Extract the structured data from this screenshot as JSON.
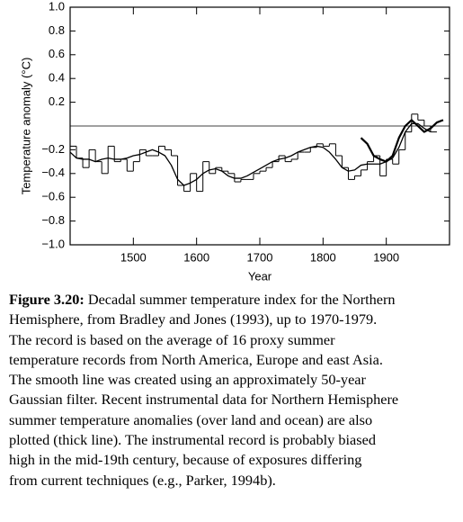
{
  "chart_data": {
    "type": "line",
    "ylabel": "Temperature anomaly (°C)",
    "xlabel": "Year",
    "xlim": [
      1400,
      2000
    ],
    "xticks": [
      1500,
      1600,
      1700,
      1800,
      1900
    ],
    "ylim": [
      -1,
      1
    ],
    "yticks": [
      {
        "value": -1,
        "label": "−1.0"
      },
      {
        "value": -0.8,
        "label": "−0.8"
      },
      {
        "value": -0.6,
        "label": "−0.6"
      },
      {
        "value": -0.4,
        "label": "−0.4"
      },
      {
        "value": -0.2,
        "label": "−0.2"
      },
      0.2,
      0.4,
      0.6,
      0.8,
      {
        "value": 1,
        "label": "1.0"
      }
    ],
    "hline": 0,
    "series": [
      {
        "style": "step",
        "width": 1,
        "color": "#000000",
        "x": [
          1400,
          1410,
          1420,
          1430,
          1440,
          1450,
          1460,
          1470,
          1480,
          1490,
          1500,
          1510,
          1520,
          1530,
          1540,
          1550,
          1560,
          1570,
          1580,
          1590,
          1600,
          1610,
          1620,
          1630,
          1640,
          1650,
          1660,
          1670,
          1680,
          1690,
          1700,
          1710,
          1720,
          1730,
          1740,
          1750,
          1760,
          1770,
          1780,
          1790,
          1800,
          1810,
          1820,
          1830,
          1840,
          1850,
          1860,
          1870,
          1880,
          1890,
          1900,
          1910,
          1920,
          1930,
          1940,
          1950,
          1960,
          1970
        ],
        "values": [
          -0.17,
          -0.27,
          -0.35,
          -0.2,
          -0.3,
          -0.4,
          -0.17,
          -0.3,
          -0.28,
          -0.38,
          -0.3,
          -0.2,
          -0.25,
          -0.25,
          -0.17,
          -0.2,
          -0.25,
          -0.5,
          -0.55,
          -0.4,
          -0.55,
          -0.3,
          -0.4,
          -0.35,
          -0.38,
          -0.4,
          -0.47,
          -0.45,
          -0.45,
          -0.4,
          -0.38,
          -0.35,
          -0.3,
          -0.25,
          -0.3,
          -0.28,
          -0.22,
          -0.22,
          -0.18,
          -0.15,
          -0.17,
          -0.15,
          -0.25,
          -0.35,
          -0.45,
          -0.42,
          -0.37,
          -0.3,
          -0.25,
          -0.42,
          -0.28,
          -0.32,
          -0.2,
          -0.05,
          0.1,
          0.05,
          0.0,
          -0.05
        ]
      },
      {
        "style": "line",
        "width": 1.3,
        "color": "#000000",
        "x": [
          1400,
          1410,
          1420,
          1430,
          1440,
          1450,
          1460,
          1470,
          1480,
          1490,
          1500,
          1510,
          1520,
          1530,
          1540,
          1550,
          1560,
          1570,
          1580,
          1590,
          1600,
          1610,
          1620,
          1630,
          1640,
          1650,
          1660,
          1670,
          1680,
          1690,
          1700,
          1710,
          1720,
          1730,
          1740,
          1750,
          1760,
          1770,
          1780,
          1790,
          1800,
          1810,
          1820,
          1830,
          1840,
          1850,
          1860,
          1870,
          1880,
          1890,
          1900,
          1910,
          1920,
          1930,
          1940,
          1950,
          1960,
          1970
        ],
        "values": [
          -0.22,
          -0.27,
          -0.28,
          -0.28,
          -0.3,
          -0.28,
          -0.27,
          -0.28,
          -0.28,
          -0.27,
          -0.25,
          -0.24,
          -0.22,
          -0.2,
          -0.22,
          -0.25,
          -0.33,
          -0.45,
          -0.5,
          -0.48,
          -0.45,
          -0.4,
          -0.37,
          -0.36,
          -0.38,
          -0.42,
          -0.44,
          -0.44,
          -0.42,
          -0.39,
          -0.36,
          -0.33,
          -0.3,
          -0.28,
          -0.27,
          -0.25,
          -0.22,
          -0.2,
          -0.18,
          -0.17,
          -0.18,
          -0.22,
          -0.28,
          -0.35,
          -0.38,
          -0.37,
          -0.33,
          -0.32,
          -0.32,
          -0.32,
          -0.3,
          -0.27,
          -0.18,
          -0.05,
          0.02,
          0.02,
          -0.02,
          -0.05
        ]
      },
      {
        "style": "line",
        "width": 2.2,
        "color": "#000000",
        "x": [
          1860,
          1870,
          1880,
          1890,
          1900,
          1910,
          1920,
          1930,
          1940,
          1950,
          1960,
          1970,
          1980,
          1990
        ],
        "values": [
          -0.1,
          -0.15,
          -0.25,
          -0.28,
          -0.3,
          -0.25,
          -0.1,
          0.0,
          0.05,
          0.0,
          -0.05,
          -0.02,
          0.03,
          0.05
        ]
      }
    ]
  },
  "caption": {
    "label": "Figure 3.20:",
    "lines": [
      "Decadal summer temperature index for the Northern",
      "Hemisphere, from Bradley and Jones (1993), up to 1970-1979.",
      "The record is based on the average of 16 proxy summer",
      "temperature records from North America, Europe and east Asia.",
      "The smooth line was created using an approximately 50-year",
      "Gaussian filter. Recent instrumental data for Northern Hemisphere",
      "summer temperature anomalies (over land and ocean) are also",
      "plotted (thick line). The instrumental record is probably biased",
      "high in the mid-19th century, because of exposures differing",
      "from current techniques (e.g., Parker, 1994b)."
    ]
  }
}
